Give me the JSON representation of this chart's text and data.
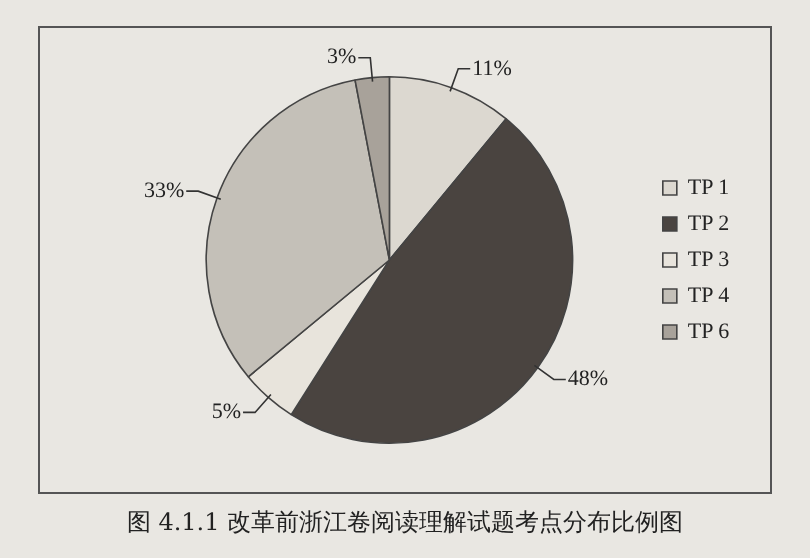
{
  "chart_data": {
    "type": "pie",
    "annotations": [
      "图 4.1.1 改革前浙江卷阅读理解试题考点分布比例图"
    ],
    "categories": [
      "TP 1",
      "TP 2",
      "TP 3",
      "TP 4",
      "TP 6"
    ],
    "values": [
      11,
      48,
      5,
      33,
      3
    ],
    "colors": [
      "#dcd8d0",
      "#4a4440",
      "#e8e4dc",
      "#c4c0b8",
      "#a8a29a"
    ],
    "value_labels": [
      "11%",
      "48%",
      "5%",
      "33%",
      "3%"
    ],
    "legend": "right"
  }
}
